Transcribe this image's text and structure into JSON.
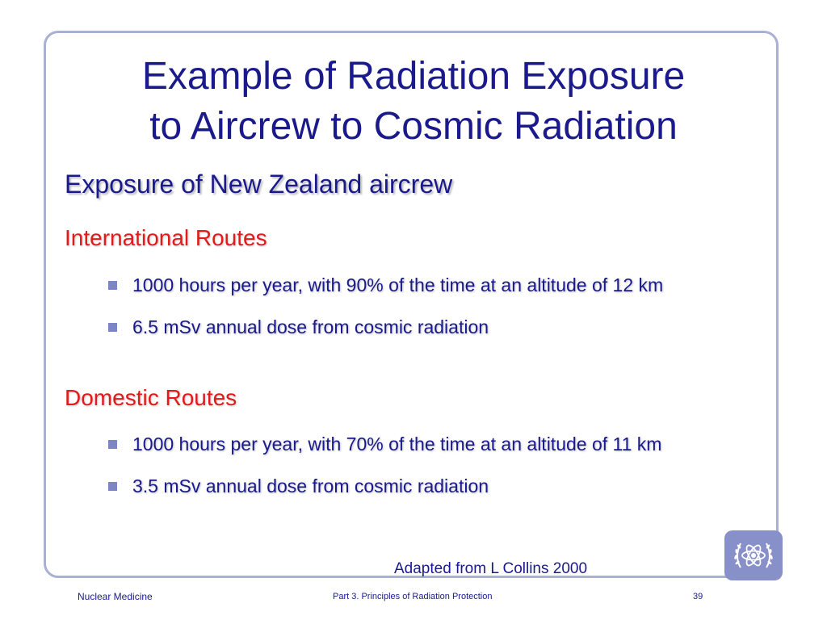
{
  "slide": {
    "title_lines": [
      "Example of Radiation Exposure",
      "to Aircrew to Cosmic Radiation"
    ],
    "section_heading": "Exposure of New Zealand aircrew",
    "groups": [
      {
        "heading": "International Routes",
        "bullets": [
          "1000 hours per year, with 90% of the time at an altitude of 12 km",
          "6.5 mSv annual dose from cosmic radiation"
        ]
      },
      {
        "heading": "Domestic Routes",
        "bullets": [
          "1000 hours per year, with 70% of the time at an altitude of 11 km",
          "3.5 mSv annual dose from cosmic radiation"
        ]
      }
    ],
    "source_note": "Adapted from L Collins 2000",
    "logo_icon": "iaea-atom-emblem-icon"
  },
  "footer": {
    "left": "Nuclear Medicine",
    "center": "Part 3. Principles of Radiation Protection",
    "page_number": "39"
  },
  "colors": {
    "title": "#1a1a8c",
    "group_heading": "#e11b1b",
    "frame": "#a8b0d6",
    "bullet": "#7c86c4",
    "logo_bg": "#8790c8"
  }
}
